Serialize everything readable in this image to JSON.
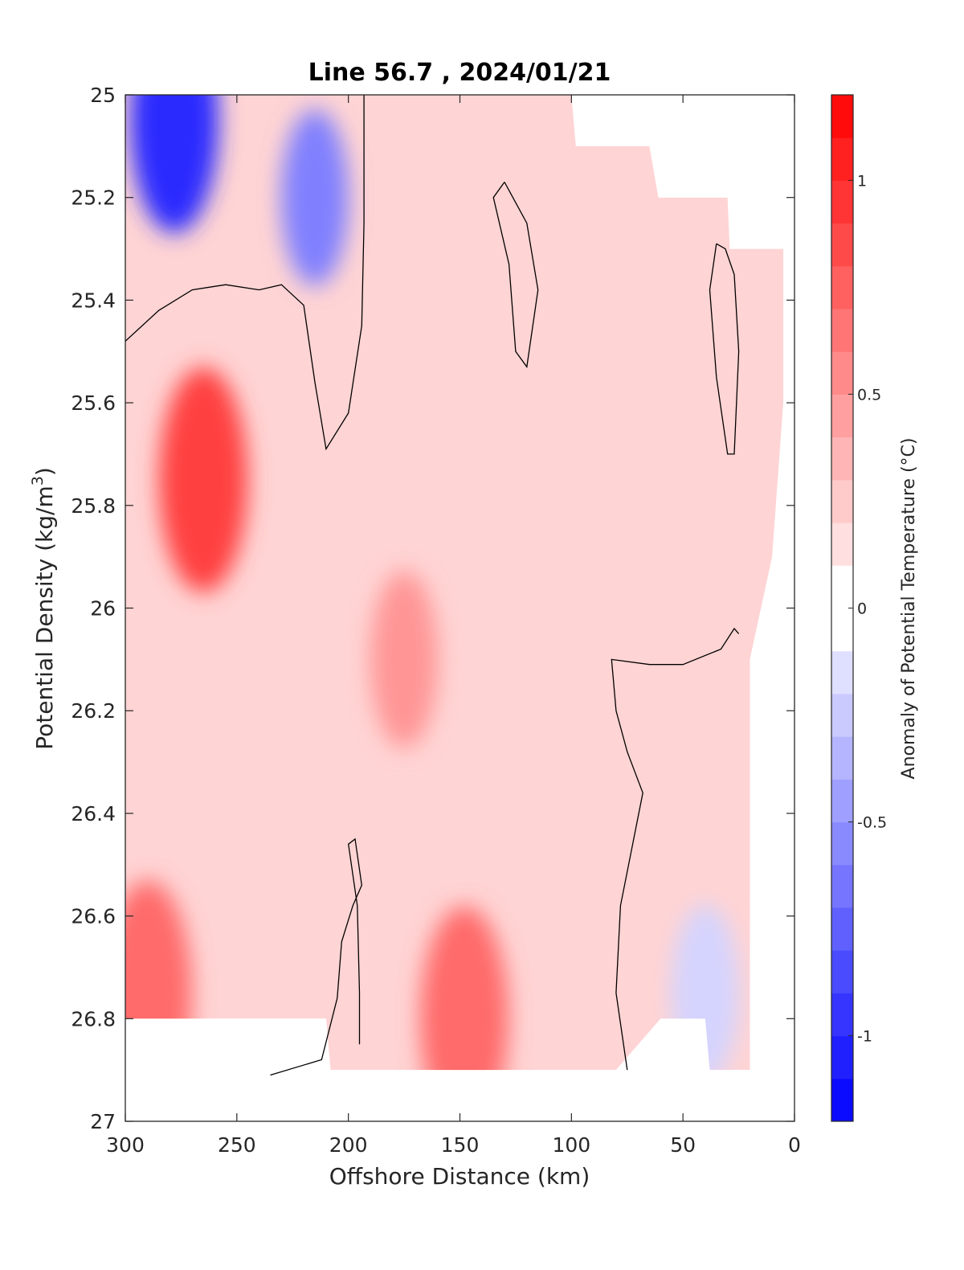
{
  "chart_data": {
    "type": "heatmap",
    "subtype": "filled-contour",
    "title": "Line 56.7 , 2024/01/21",
    "xlabel": "Offshore Distance (km)",
    "ylabel": "Potential Density (kg/m³)",
    "ylabel_base": "Potential Density (kg/m",
    "ylabel_sup": "3",
    "ylabel_tail": ")",
    "xlim": [
      300,
      0
    ],
    "x_reversed": true,
    "ylim": [
      25,
      27
    ],
    "y_reversed": true,
    "xticks": [
      300,
      250,
      200,
      150,
      100,
      50,
      0
    ],
    "xtick_labels": [
      "300",
      "250",
      "200",
      "150",
      "100",
      "50",
      "0"
    ],
    "yticks": [
      25,
      25.2,
      25.4,
      25.6,
      25.8,
      26,
      26.2,
      26.4,
      26.6,
      26.8,
      27
    ],
    "ytick_labels": [
      "25",
      "25.2",
      "25.4",
      "25.6",
      "25.8",
      "26",
      "26.2",
      "26.4",
      "26.6",
      "26.8",
      "27"
    ],
    "colorbar": {
      "label": "Anomaly of Potential Temperature (°C)",
      "range": [
        -1.2,
        1.2
      ],
      "ticks": [
        -1,
        -0.5,
        0,
        0.5,
        1
      ],
      "tick_labels": [
        "-1",
        "-0.5",
        "0",
        "0.5",
        "1"
      ],
      "levels": [
        -1.2,
        -1.1,
        -1.0,
        -0.9,
        -0.8,
        -0.7,
        -0.6,
        -0.5,
        -0.4,
        -0.3,
        -0.2,
        -0.1,
        0.1,
        0.2,
        0.3,
        0.4,
        0.5,
        0.6,
        0.7,
        0.8,
        0.9,
        1.0,
        1.1,
        1.2
      ],
      "colormap": "blue-white-red",
      "neg_color": "#0000ff",
      "pos_color": "#ff0000",
      "zero_color": "#ffffff"
    },
    "data_extent": {
      "top_edge": [
        [
          300,
          25.0
        ],
        [
          100,
          25.0
        ],
        [
          98,
          25.1
        ],
        [
          65,
          25.1
        ],
        [
          61,
          25.2
        ],
        [
          30,
          25.2
        ],
        [
          29,
          25.3
        ],
        [
          5,
          25.3
        ],
        [
          5,
          25.6
        ],
        [
          10,
          25.9
        ]
      ],
      "bottom_edge": [
        [
          300,
          26.8
        ],
        [
          210,
          26.8
        ],
        [
          208,
          26.9
        ],
        [
          80,
          26.9
        ],
        [
          60,
          26.8
        ],
        [
          40,
          26.8
        ],
        [
          38,
          26.9
        ],
        [
          20,
          26.9
        ],
        [
          20,
          26.1
        ]
      ]
    },
    "zero_contour_lines": [
      [
        [
          300,
          25.48
        ],
        [
          285,
          25.42
        ],
        [
          270,
          25.38
        ],
        [
          255,
          25.37
        ],
        [
          240,
          25.38
        ],
        [
          230,
          25.37
        ],
        [
          220,
          25.41
        ],
        [
          215,
          25.56
        ],
        [
          210,
          25.69
        ],
        [
          200,
          25.62
        ],
        [
          194,
          25.45
        ],
        [
          193,
          25.25
        ],
        [
          193,
          25.0
        ]
      ],
      [
        [
          130,
          25.17
        ],
        [
          135,
          25.2
        ],
        [
          128,
          25.33
        ],
        [
          125,
          25.5
        ],
        [
          120,
          25.53
        ],
        [
          115,
          25.38
        ],
        [
          120,
          25.25
        ],
        [
          130,
          25.17
        ]
      ],
      [
        [
          35,
          25.29
        ],
        [
          38,
          25.38
        ],
        [
          35,
          25.55
        ],
        [
          30,
          25.7
        ],
        [
          27,
          25.7
        ],
        [
          25,
          25.5
        ],
        [
          27,
          25.35
        ],
        [
          31,
          25.3
        ],
        [
          35,
          25.29
        ]
      ],
      [
        [
          75,
          26.9
        ],
        [
          80,
          26.75
        ],
        [
          78,
          26.58
        ],
        [
          68,
          26.36
        ],
        [
          75,
          26.28
        ],
        [
          80,
          26.2
        ],
        [
          82,
          26.1
        ],
        [
          65,
          26.11
        ],
        [
          50,
          26.11
        ],
        [
          33,
          26.08
        ],
        [
          27,
          26.04
        ],
        [
          25,
          26.05
        ]
      ],
      [
        [
          235,
          26.91
        ],
        [
          212,
          26.88
        ],
        [
          205,
          26.76
        ],
        [
          203,
          26.65
        ],
        [
          198,
          26.58
        ],
        [
          194,
          26.54
        ],
        [
          197,
          26.45
        ],
        [
          200,
          26.46
        ],
        [
          196,
          26.58
        ],
        [
          195,
          26.75
        ],
        [
          195,
          26.85
        ]
      ]
    ],
    "features": [
      {
        "kind": "cold core",
        "x": 278,
        "y": 25.05,
        "value": -1.0
      },
      {
        "kind": "cold core",
        "x": 215,
        "y": 25.2,
        "value": -0.6
      },
      {
        "kind": "warm core",
        "x": 265,
        "y": 25.75,
        "value": 0.9
      },
      {
        "kind": "warm core",
        "x": 175,
        "y": 26.1,
        "value": 0.5
      },
      {
        "kind": "warm core",
        "x": 148,
        "y": 26.8,
        "value": 0.7
      },
      {
        "kind": "warm patch",
        "x": 290,
        "y": 26.75,
        "value": 0.7
      },
      {
        "kind": "cold patch",
        "x": 40,
        "y": 26.75,
        "value": -0.2
      }
    ]
  }
}
